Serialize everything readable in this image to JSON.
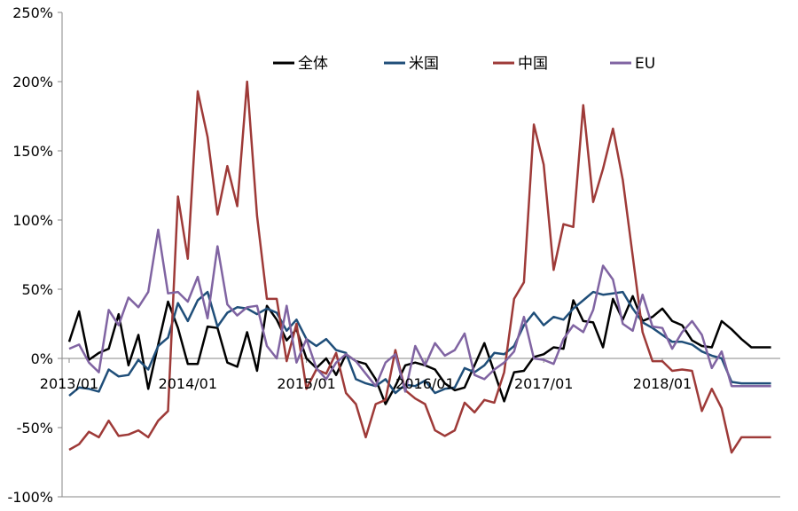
{
  "chart_data": {
    "type": "line",
    "title": "",
    "xlabel": "",
    "ylabel": "",
    "ylim": [
      -100,
      250
    ],
    "yticks": [
      -100,
      -50,
      0,
      50,
      100,
      150,
      200,
      250
    ],
    "ytick_labels": [
      "-100%",
      "-50%",
      "0%",
      "50%",
      "100%",
      "150%",
      "200%",
      "250%"
    ],
    "x_start": "2013/01",
    "x_count": 72,
    "xtick_labels": [
      "2013/01",
      "2014/01",
      "2015/01",
      "2016/01",
      "2017/01",
      "2018/01"
    ],
    "grid": false,
    "legend_position": "top",
    "series": [
      {
        "name": "全体",
        "color": "#000000",
        "values": [
          12,
          34,
          -1,
          4,
          7,
          32,
          -5,
          17,
          -22,
          10,
          41,
          22,
          -4,
          -4,
          23,
          22,
          -3,
          -6,
          19,
          -9,
          38,
          28,
          13,
          21,
          0,
          -7,
          0,
          -12,
          3,
          -2,
          -4,
          -15,
          -33,
          -20,
          -5,
          -3,
          -5,
          -8,
          -18,
          -23,
          -21,
          -5,
          11,
          -10,
          -31,
          -10,
          -9,
          1,
          3,
          8,
          7,
          42,
          27,
          26,
          8,
          43,
          28,
          45,
          27,
          30,
          36,
          27,
          24,
          13,
          9,
          8,
          27,
          21,
          14,
          8,
          8,
          8
        ]
      },
      {
        "name": "米国",
        "color": "#1f4e79",
        "values": [
          -27,
          -21,
          -22,
          -24,
          -8,
          -13,
          -12,
          -1,
          -8,
          9,
          15,
          40,
          27,
          42,
          48,
          23,
          33,
          37,
          36,
          32,
          36,
          33,
          20,
          28,
          14,
          9,
          14,
          6,
          4,
          -15,
          -18,
          -20,
          -15,
          -25,
          -19,
          -20,
          -16,
          -25,
          -22,
          -21,
          -7,
          -10,
          -5,
          4,
          3,
          9,
          24,
          33,
          24,
          30,
          28,
          36,
          42,
          48,
          46,
          47,
          48,
          36,
          26,
          22,
          17,
          12,
          12,
          10,
          5,
          2,
          0,
          -17,
          -18,
          -18,
          -18,
          -18
        ]
      },
      {
        "name": "中国",
        "color": "#9e3a38",
        "values": [
          -66,
          -62,
          -53,
          -57,
          -45,
          -56,
          -55,
          -52,
          -57,
          -45,
          -38,
          117,
          72,
          193,
          160,
          104,
          139,
          110,
          200,
          103,
          43,
          43,
          -2,
          25,
          -22,
          -8,
          -11,
          4,
          -25,
          -33,
          -57,
          -33,
          -30,
          6,
          -23,
          -29,
          -33,
          -52,
          -56,
          -52,
          -32,
          -39,
          -30,
          -32,
          -10,
          43,
          55,
          169,
          140,
          64,
          97,
          95,
          183,
          113,
          137,
          166,
          129,
          74,
          19,
          -2,
          -2,
          -9,
          -8,
          -9,
          -38,
          -22,
          -36,
          -68,
          -57,
          -57,
          -57,
          -57
        ]
      },
      {
        "name": "EU",
        "color": "#8064a2",
        "values": [
          7,
          10,
          -3,
          -10,
          35,
          24,
          44,
          37,
          48,
          93,
          47,
          48,
          41,
          59,
          29,
          81,
          39,
          31,
          37,
          38,
          9,
          0,
          38,
          -3,
          14,
          -7,
          -15,
          -3,
          3,
          -2,
          -11,
          -20,
          -3,
          3,
          -24,
          9,
          -5,
          11,
          2,
          6,
          18,
          -12,
          -15,
          -8,
          -3,
          5,
          30,
          0,
          -1,
          -4,
          14,
          24,
          19,
          35,
          67,
          57,
          25,
          20,
          46,
          23,
          22,
          7,
          19,
          27,
          17,
          -7,
          5,
          -20,
          -20,
          -20,
          -20,
          -20
        ]
      }
    ]
  }
}
